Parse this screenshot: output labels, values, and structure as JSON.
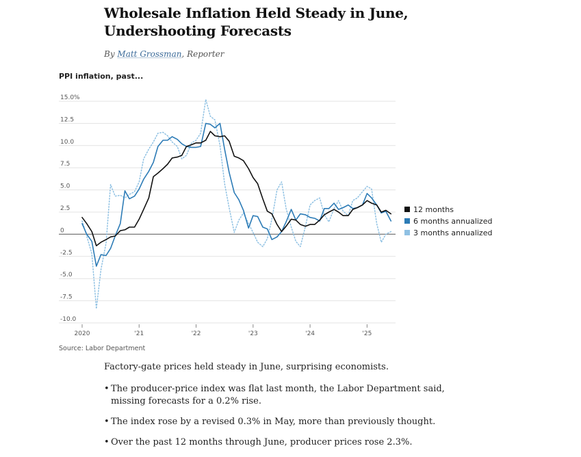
{
  "article": {
    "headline": "Wholesale Inflation Held Steady in June, Undershooting Forecasts",
    "byline_prefix": "By ",
    "author": "Matt Grossman",
    "role": ", Reporter",
    "lede": "Factory-gate prices held steady in June, surprising economists.",
    "bullets": [
      "The producer-price index was flat last month, the Labor Department said, missing forecasts for a 0.2% rise.",
      "The index rose by a revised 0.3% in May, more than previously thought.",
      "Over the past 12 months through June, producer prices rose 2.3%."
    ]
  },
  "chart_data": {
    "type": "line",
    "title": "PPI inflation, past...",
    "source": "Source: Labor Department",
    "xlabel": "",
    "ylabel": "",
    "ylim": [
      -10,
      15
    ],
    "yticks": [
      {
        "value": 15,
        "label": "15.0%"
      },
      {
        "value": 12.5,
        "label": "12.5"
      },
      {
        "value": 10,
        "label": "10.0"
      },
      {
        "value": 7.5,
        "label": "7.5"
      },
      {
        "value": 5,
        "label": "5.0"
      },
      {
        "value": 2.5,
        "label": "2.5"
      },
      {
        "value": 0,
        "label": "0"
      },
      {
        "value": -2.5,
        "label": "-2.5"
      },
      {
        "value": -5,
        "label": "-5.0"
      },
      {
        "value": -7.5,
        "label": "-7.5"
      },
      {
        "value": -10,
        "label": "-10.0"
      }
    ],
    "xticks": [
      {
        "value": 2020.0,
        "label": "2020"
      },
      {
        "value": 2021.0,
        "label": "'21"
      },
      {
        "value": 2022.0,
        "label": "'22"
      },
      {
        "value": 2023.0,
        "label": "'23"
      },
      {
        "value": 2024.0,
        "label": "'24"
      },
      {
        "value": 2025.0,
        "label": "'25"
      }
    ],
    "xlim": [
      2019.75,
      2025.75
    ],
    "grid": true,
    "legend_position": "right",
    "series": [
      {
        "name": "12 months",
        "color": "#111111",
        "dash": "solid",
        "points": [
          [
            2020.0,
            1.9
          ],
          [
            2020.08,
            1.2
          ],
          [
            2020.17,
            0.3
          ],
          [
            2020.25,
            -1.3
          ],
          [
            2020.33,
            -0.9
          ],
          [
            2020.42,
            -0.6
          ],
          [
            2020.5,
            -0.3
          ],
          [
            2020.58,
            -0.2
          ],
          [
            2020.67,
            0.4
          ],
          [
            2020.75,
            0.5
          ],
          [
            2020.83,
            0.8
          ],
          [
            2020.92,
            0.8
          ],
          [
            2021.0,
            1.7
          ],
          [
            2021.08,
            2.8
          ],
          [
            2021.17,
            4.1
          ],
          [
            2021.25,
            6.5
          ],
          [
            2021.33,
            6.9
          ],
          [
            2021.42,
            7.4
          ],
          [
            2021.5,
            7.9
          ],
          [
            2021.58,
            8.6
          ],
          [
            2021.67,
            8.7
          ],
          [
            2021.75,
            8.9
          ],
          [
            2021.83,
            9.9
          ],
          [
            2021.92,
            10.1
          ],
          [
            2022.0,
            10.3
          ],
          [
            2022.08,
            10.3
          ],
          [
            2022.17,
            10.6
          ],
          [
            2022.25,
            11.6
          ],
          [
            2022.33,
            11.1
          ],
          [
            2022.42,
            11.0
          ],
          [
            2022.5,
            11.1
          ],
          [
            2022.58,
            10.5
          ],
          [
            2022.67,
            8.8
          ],
          [
            2022.75,
            8.6
          ],
          [
            2022.83,
            8.3
          ],
          [
            2022.92,
            7.4
          ],
          [
            2023.0,
            6.4
          ],
          [
            2023.08,
            5.7
          ],
          [
            2023.17,
            4.0
          ],
          [
            2023.25,
            2.6
          ],
          [
            2023.33,
            2.3
          ],
          [
            2023.42,
            1.1
          ],
          [
            2023.5,
            0.3
          ],
          [
            2023.58,
            0.9
          ],
          [
            2023.67,
            1.7
          ],
          [
            2023.75,
            1.6
          ],
          [
            2023.83,
            1.1
          ],
          [
            2023.92,
            0.9
          ],
          [
            2024.0,
            1.1
          ],
          [
            2024.08,
            1.1
          ],
          [
            2024.17,
            1.6
          ],
          [
            2024.25,
            2.2
          ],
          [
            2024.33,
            2.5
          ],
          [
            2024.42,
            2.8
          ],
          [
            2024.5,
            2.5
          ],
          [
            2024.58,
            2.1
          ],
          [
            2024.67,
            2.1
          ],
          [
            2024.75,
            2.8
          ],
          [
            2024.83,
            3.0
          ],
          [
            2024.92,
            3.3
          ],
          [
            2025.0,
            3.8
          ],
          [
            2025.08,
            3.5
          ],
          [
            2025.17,
            3.3
          ],
          [
            2025.25,
            2.5
          ],
          [
            2025.33,
            2.7
          ],
          [
            2025.42,
            2.3
          ]
        ]
      },
      {
        "name": "6 months annualized",
        "color": "#2c7bb6",
        "dash": "solid",
        "points": [
          [
            2020.0,
            1.2
          ],
          [
            2020.08,
            0.0
          ],
          [
            2020.17,
            -0.8
          ],
          [
            2020.25,
            -3.6
          ],
          [
            2020.33,
            -2.3
          ],
          [
            2020.42,
            -2.4
          ],
          [
            2020.5,
            -1.6
          ],
          [
            2020.58,
            -0.2
          ],
          [
            2020.67,
            1.2
          ],
          [
            2020.75,
            4.9
          ],
          [
            2020.83,
            4.0
          ],
          [
            2020.92,
            4.3
          ],
          [
            2021.0,
            5.1
          ],
          [
            2021.08,
            6.2
          ],
          [
            2021.17,
            7.1
          ],
          [
            2021.25,
            8.1
          ],
          [
            2021.33,
            9.9
          ],
          [
            2021.42,
            10.6
          ],
          [
            2021.5,
            10.6
          ],
          [
            2021.58,
            11.0
          ],
          [
            2021.67,
            10.7
          ],
          [
            2021.75,
            10.2
          ],
          [
            2021.83,
            9.9
          ],
          [
            2021.92,
            9.8
          ],
          [
            2022.0,
            9.8
          ],
          [
            2022.08,
            9.9
          ],
          [
            2022.17,
            12.5
          ],
          [
            2022.25,
            12.4
          ],
          [
            2022.33,
            12.0
          ],
          [
            2022.42,
            12.5
          ],
          [
            2022.5,
            9.6
          ],
          [
            2022.58,
            7.0
          ],
          [
            2022.67,
            4.7
          ],
          [
            2022.75,
            3.9
          ],
          [
            2022.83,
            2.7
          ],
          [
            2022.92,
            0.7
          ],
          [
            2023.0,
            2.1
          ],
          [
            2023.08,
            2.0
          ],
          [
            2023.17,
            0.8
          ],
          [
            2023.25,
            0.6
          ],
          [
            2023.33,
            -0.6
          ],
          [
            2023.42,
            -0.3
          ],
          [
            2023.5,
            0.3
          ],
          [
            2023.58,
            1.4
          ],
          [
            2023.67,
            2.8
          ],
          [
            2023.75,
            1.6
          ],
          [
            2023.83,
            2.3
          ],
          [
            2023.92,
            2.2
          ],
          [
            2024.0,
            1.9
          ],
          [
            2024.08,
            1.8
          ],
          [
            2024.17,
            1.5
          ],
          [
            2024.25,
            2.9
          ],
          [
            2024.33,
            2.9
          ],
          [
            2024.42,
            3.5
          ],
          [
            2024.5,
            2.8
          ],
          [
            2024.58,
            3.0
          ],
          [
            2024.67,
            3.3
          ],
          [
            2024.75,
            2.9
          ],
          [
            2024.83,
            3.0
          ],
          [
            2024.92,
            3.3
          ],
          [
            2025.0,
            4.6
          ],
          [
            2025.08,
            4.1
          ],
          [
            2025.17,
            3.3
          ],
          [
            2025.25,
            2.4
          ],
          [
            2025.33,
            2.6
          ],
          [
            2025.42,
            1.5
          ]
        ]
      },
      {
        "name": "3 months annualized",
        "color": "#8fc1e3",
        "dash": "dotted",
        "points": [
          [
            2020.0,
            1.5
          ],
          [
            2020.08,
            -0.2
          ],
          [
            2020.17,
            -2.2
          ],
          [
            2020.25,
            -8.4
          ],
          [
            2020.33,
            -4.0
          ],
          [
            2020.42,
            -1.0
          ],
          [
            2020.5,
            5.6
          ],
          [
            2020.58,
            4.3
          ],
          [
            2020.67,
            4.4
          ],
          [
            2020.75,
            4.1
          ],
          [
            2020.83,
            4.5
          ],
          [
            2020.92,
            4.8
          ],
          [
            2021.0,
            5.9
          ],
          [
            2021.08,
            8.5
          ],
          [
            2021.17,
            9.6
          ],
          [
            2021.25,
            10.4
          ],
          [
            2021.33,
            11.4
          ],
          [
            2021.42,
            11.5
          ],
          [
            2021.5,
            11.1
          ],
          [
            2021.58,
            10.4
          ],
          [
            2021.67,
            9.9
          ],
          [
            2021.75,
            8.5
          ],
          [
            2021.83,
            8.9
          ],
          [
            2021.92,
            10.3
          ],
          [
            2022.0,
            10.6
          ],
          [
            2022.08,
            11.4
          ],
          [
            2022.17,
            15.2
          ],
          [
            2022.25,
            13.3
          ],
          [
            2022.33,
            12.9
          ],
          [
            2022.42,
            10.0
          ],
          [
            2022.5,
            5.7
          ],
          [
            2022.58,
            3.0
          ],
          [
            2022.67,
            0.2
          ],
          [
            2022.75,
            1.6
          ],
          [
            2022.83,
            2.4
          ],
          [
            2022.92,
            1.2
          ],
          [
            2023.0,
            0.2
          ],
          [
            2023.08,
            -0.9
          ],
          [
            2023.17,
            -1.4
          ],
          [
            2023.25,
            -0.5
          ],
          [
            2023.33,
            1.7
          ],
          [
            2023.42,
            5.0
          ],
          [
            2023.5,
            5.9
          ],
          [
            2023.58,
            2.9
          ],
          [
            2023.67,
            0.8
          ],
          [
            2023.75,
            -0.8
          ],
          [
            2023.83,
            -1.4
          ],
          [
            2023.92,
            0.9
          ],
          [
            2024.0,
            3.3
          ],
          [
            2024.08,
            3.8
          ],
          [
            2024.17,
            4.1
          ],
          [
            2024.25,
            2.2
          ],
          [
            2024.33,
            1.4
          ],
          [
            2024.42,
            2.9
          ],
          [
            2024.5,
            3.8
          ],
          [
            2024.58,
            2.6
          ],
          [
            2024.67,
            2.1
          ],
          [
            2024.75,
            3.8
          ],
          [
            2024.83,
            4.1
          ],
          [
            2024.92,
            4.8
          ],
          [
            2025.0,
            5.4
          ],
          [
            2025.08,
            5.1
          ],
          [
            2025.17,
            1.2
          ],
          [
            2025.25,
            -0.9
          ],
          [
            2025.33,
            0.0
          ],
          [
            2025.42,
            0.3
          ]
        ]
      }
    ]
  }
}
